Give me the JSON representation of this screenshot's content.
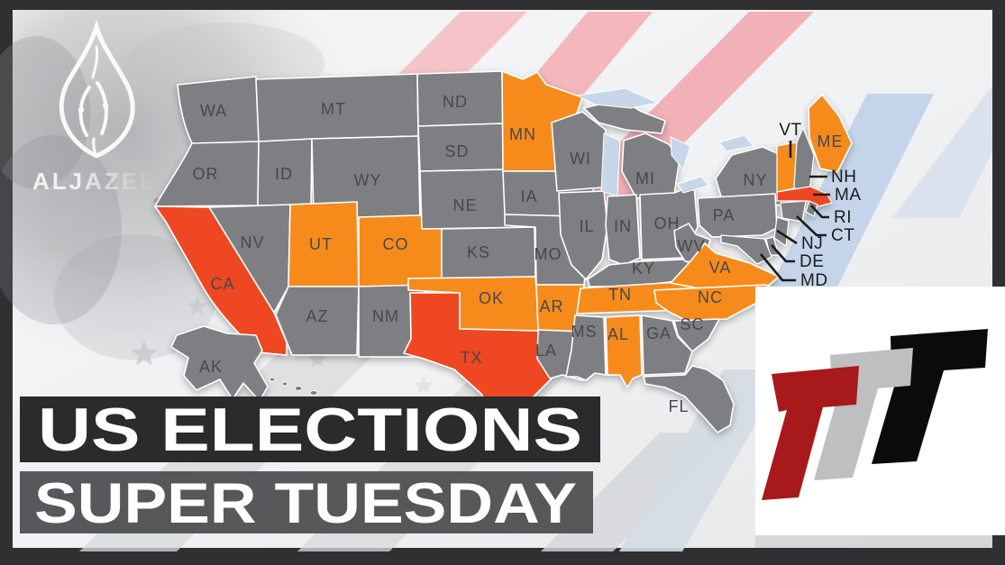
{
  "brand": {
    "wordmark": "ALJAZEERA"
  },
  "banner": {
    "line1": "US ELECTIONS",
    "line2": "SUPER TUESDAY"
  },
  "map": {
    "status_colors": {
      "super_tuesday": "#F68B1E",
      "super_tuesday_major": "#EE4623",
      "no_contest": "#7D7F82"
    },
    "states": [
      {
        "abbr": "WA",
        "status": "no_contest",
        "label": "inline"
      },
      {
        "abbr": "OR",
        "status": "no_contest",
        "label": "inline"
      },
      {
        "abbr": "ID",
        "status": "no_contest",
        "label": "inline"
      },
      {
        "abbr": "MT",
        "status": "no_contest",
        "label": "inline"
      },
      {
        "abbr": "WY",
        "status": "no_contest",
        "label": "inline"
      },
      {
        "abbr": "NV",
        "status": "no_contest",
        "label": "inline"
      },
      {
        "abbr": "UT",
        "status": "super_tuesday",
        "label": "inline"
      },
      {
        "abbr": "CO",
        "status": "super_tuesday",
        "label": "inline"
      },
      {
        "abbr": "AZ",
        "status": "no_contest",
        "label": "inline"
      },
      {
        "abbr": "NM",
        "status": "no_contest",
        "label": "inline"
      },
      {
        "abbr": "CA",
        "status": "super_tuesday_major",
        "label": "inline"
      },
      {
        "abbr": "ND",
        "status": "no_contest",
        "label": "inline"
      },
      {
        "abbr": "SD",
        "status": "no_contest",
        "label": "inline"
      },
      {
        "abbr": "NE",
        "status": "no_contest",
        "label": "inline"
      },
      {
        "abbr": "KS",
        "status": "no_contest",
        "label": "inline"
      },
      {
        "abbr": "OK",
        "status": "super_tuesday",
        "label": "inline"
      },
      {
        "abbr": "TX",
        "status": "super_tuesday_major",
        "label": "inline"
      },
      {
        "abbr": "MN",
        "status": "super_tuesday",
        "label": "inline"
      },
      {
        "abbr": "IA",
        "status": "no_contest",
        "label": "inline"
      },
      {
        "abbr": "MO",
        "status": "no_contest",
        "label": "inline"
      },
      {
        "abbr": "AR",
        "status": "super_tuesday",
        "label": "inline"
      },
      {
        "abbr": "LA",
        "status": "no_contest",
        "label": "inline"
      },
      {
        "abbr": "WI",
        "status": "no_contest",
        "label": "inline"
      },
      {
        "abbr": "MI",
        "status": "no_contest",
        "label": "inline"
      },
      {
        "abbr": "IL",
        "status": "no_contest",
        "label": "inline"
      },
      {
        "abbr": "IN",
        "status": "no_contest",
        "label": "inline"
      },
      {
        "abbr": "OH",
        "status": "no_contest",
        "label": "inline"
      },
      {
        "abbr": "KY",
        "status": "no_contest",
        "label": "inline"
      },
      {
        "abbr": "TN",
        "status": "super_tuesday",
        "label": "inline"
      },
      {
        "abbr": "WV",
        "status": "no_contest",
        "label": "inline"
      },
      {
        "abbr": "VA",
        "status": "super_tuesday",
        "label": "inline"
      },
      {
        "abbr": "NC",
        "status": "super_tuesday",
        "label": "inline"
      },
      {
        "abbr": "SC",
        "status": "no_contest",
        "label": "inline"
      },
      {
        "abbr": "GA",
        "status": "no_contest",
        "label": "inline"
      },
      {
        "abbr": "AL",
        "status": "super_tuesday",
        "label": "inline"
      },
      {
        "abbr": "MS",
        "status": "no_contest",
        "label": "inline"
      },
      {
        "abbr": "FL",
        "status": "no_contest",
        "label": "inline"
      },
      {
        "abbr": "NY",
        "status": "no_contest",
        "label": "inline"
      },
      {
        "abbr": "PA",
        "status": "no_contest",
        "label": "inline"
      },
      {
        "abbr": "NJ",
        "status": "no_contest",
        "label": "callout"
      },
      {
        "abbr": "DE",
        "status": "no_contest",
        "label": "callout"
      },
      {
        "abbr": "MD",
        "status": "no_contest",
        "label": "callout"
      },
      {
        "abbr": "VT",
        "status": "super_tuesday",
        "label": "callout"
      },
      {
        "abbr": "NH",
        "status": "no_contest",
        "label": "callout"
      },
      {
        "abbr": "ME",
        "status": "super_tuesday",
        "label": "inline"
      },
      {
        "abbr": "MA",
        "status": "super_tuesday_major",
        "label": "callout"
      },
      {
        "abbr": "CT",
        "status": "no_contest",
        "label": "callout"
      },
      {
        "abbr": "RI",
        "status": "no_contest",
        "label": "callout"
      },
      {
        "abbr": "AK",
        "status": "no_contest",
        "label": "inline"
      }
    ]
  },
  "watermark": {
    "monogram": "TTT",
    "colors": [
      "#0B0B0B",
      "#BDBFC1",
      "#A8191B"
    ]
  }
}
